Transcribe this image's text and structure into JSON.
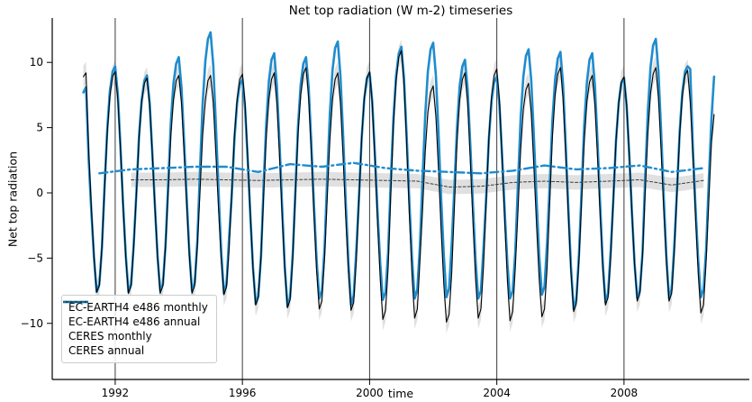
{
  "title": "Net top radiation (W m-2) timeseries",
  "chart_data": {
    "type": "line",
    "title": "Net top radiation (W m-2) timeseries",
    "xlabel": "time",
    "ylabel": "Net top radiation",
    "xlim": [
      1990.02,
      2011.94
    ],
    "ylim": [
      -14.3,
      13.4
    ],
    "xticks": [
      1992,
      1996,
      2000,
      2004,
      2008
    ],
    "yticks": [
      -10,
      -5,
      0,
      5,
      10
    ],
    "grid": "vertical lines at year ticks",
    "gridline_color": "#3a3a3a",
    "legend_position": "lower left",
    "series": [
      {
        "name": "EC-EARTH4 e486 monthly",
        "color": "#1f8ccd",
        "line": "solid",
        "width": 2.6,
        "x_start": 1991.0,
        "x_step": 0.0833333,
        "y": [
          7.7,
          8.1,
          2.5,
          -1.4,
          -5.0,
          -7.6,
          -7.0,
          -4.2,
          0.5,
          4.9,
          7.8,
          9.3,
          9.7,
          7.5,
          3.5,
          -0.9,
          -4.8,
          -7.6,
          -7.0,
          -3.9,
          0.1,
          4.4,
          7.1,
          8.6,
          9.0,
          6.9,
          3.1,
          -1.1,
          -4.9,
          -7.5,
          -7.0,
          -4.0,
          0.8,
          5.4,
          8.4,
          9.9,
          10.4,
          8.1,
          4.0,
          -0.5,
          -4.6,
          -7.5,
          -6.9,
          -3.7,
          1.8,
          6.8,
          10.1,
          11.8,
          12.3,
          9.8,
          5.2,
          0.1,
          -4.4,
          -7.7,
          -7.0,
          -3.4,
          -0.1,
          4.1,
          6.9,
          8.3,
          8.7,
          6.5,
          2.6,
          -1.8,
          -5.7,
          -8.5,
          -7.9,
          -4.9,
          0.5,
          5.3,
          8.6,
          10.2,
          10.7,
          8.2,
          3.8,
          -1.1,
          -5.6,
          -8.7,
          -8.0,
          -4.6,
          0.2,
          5.1,
          8.3,
          9.9,
          10.4,
          8.1,
          3.8,
          -0.9,
          -5.1,
          -8.1,
          -7.5,
          -4.2,
          1.1,
          6.1,
          9.4,
          11.1,
          11.6,
          9.0,
          4.4,
          -0.7,
          -5.3,
          -8.6,
          -7.9,
          -4.3,
          -0.3,
          4.2,
          7.2,
          8.8,
          9.2,
          7.0,
          3.0,
          -1.4,
          -5.4,
          -8.2,
          -7.6,
          -4.5,
          0.9,
          5.8,
          9.0,
          10.7,
          11.2,
          8.8,
          4.3,
          -0.6,
          -5.0,
          -8.1,
          -7.4,
          -4.0,
          1.1,
          6.0,
          9.3,
          11.0,
          11.5,
          9.0,
          4.6,
          -0.4,
          -4.8,
          -8.0,
          -7.3,
          -3.9,
          0.5,
          5.1,
          8.2,
          9.7,
          10.2,
          7.9,
          3.7,
          -1.0,
          -5.2,
          -8.1,
          -7.5,
          -4.2,
          -0.2,
          4.1,
          7.0,
          8.5,
          8.9,
          6.7,
          2.9,
          -1.5,
          -5.4,
          -8.1,
          -7.5,
          -4.5,
          0.8,
          5.7,
          8.9,
          10.5,
          11.0,
          8.6,
          4.3,
          -0.5,
          -4.8,
          -7.8,
          -7.2,
          -3.8,
          0.9,
          5.6,
          8.7,
          10.3,
          10.8,
          8.3,
          3.8,
          -1.2,
          -5.7,
          -8.9,
          -8.2,
          -4.7,
          0.2,
          5.2,
          8.5,
          10.2,
          10.7,
          8.3,
          3.9,
          -0.9,
          -5.3,
          -8.4,
          -7.7,
          -4.3,
          -0.4,
          4.0,
          6.9,
          8.4,
          8.8,
          6.7,
          2.8,
          -1.5,
          -5.4,
          -8.1,
          -7.5,
          -4.5,
          1.2,
          6.3,
          9.6,
          11.3,
          11.8,
          9.3,
          4.7,
          -0.3,
          -4.9,
          -8.1,
          -7.4,
          -3.9,
          0.2,
          4.7,
          7.7,
          9.3,
          9.7,
          9.5,
          3.4,
          -1.1,
          -5.2,
          -8.0,
          -7.4,
          -4.3,
          0.9,
          5.7,
          8.9
        ]
      },
      {
        "name": "EC-EARTH4 e486 annual",
        "color": "#1f8ccd",
        "line": "dashed",
        "dash": "9 4 2 4",
        "width": 2.4,
        "x_start": 1991.5,
        "x_step": 1,
        "y": [
          1.5,
          1.8,
          1.9,
          2.0,
          2.0,
          1.6,
          2.2,
          2.0,
          2.3,
          1.9,
          1.7,
          1.6,
          1.5,
          1.7,
          2.1,
          1.8,
          1.9,
          2.1,
          1.6,
          1.9
        ]
      },
      {
        "name": "CERES monthly",
        "color": "#000000",
        "line": "solid",
        "width": 1.1,
        "band": 0.85,
        "band_color": "#d8d8d8",
        "x_start": 1991.0,
        "x_step": 0.0833333,
        "y": [
          8.9,
          9.2,
          3.2,
          -1.1,
          -4.9,
          -7.6,
          -7.1,
          -4.1,
          0.3,
          4.6,
          7.4,
          8.9,
          9.3,
          7.1,
          3.3,
          -1.1,
          -5.0,
          -7.7,
          -7.1,
          -4.1,
          0.0,
          4.2,
          7.0,
          8.4,
          8.8,
          6.7,
          3.0,
          -1.2,
          -5.0,
          -7.7,
          -7.1,
          -4.1,
          0.1,
          4.4,
          7.1,
          8.6,
          9.0,
          6.9,
          3.1,
          -1.1,
          -4.9,
          -7.7,
          -7.1,
          -4.1,
          0.1,
          4.4,
          7.1,
          8.6,
          9.0,
          6.9,
          3.0,
          -1.3,
          -5.1,
          -7.8,
          -7.2,
          -4.3,
          0.1,
          4.4,
          7.2,
          8.7,
          9.1,
          6.9,
          2.8,
          -1.7,
          -5.8,
          -8.6,
          -8.0,
          -4.9,
          -0.3,
          4.2,
          7.2,
          8.7,
          9.2,
          6.9,
          2.8,
          -1.8,
          -5.9,
          -8.8,
          -8.2,
          -5.0,
          -0.2,
          4.5,
          7.5,
          9.1,
          9.6,
          7.3,
          3.0,
          -1.7,
          -5.9,
          -8.9,
          -8.3,
          -5.0,
          -0.5,
          4.1,
          7.2,
          8.7,
          9.2,
          6.9,
          2.7,
          -1.9,
          -6.1,
          -9.0,
          -8.4,
          -5.1,
          -0.5,
          4.2,
          7.3,
          8.8,
          9.3,
          6.9,
          2.5,
          -2.3,
          -6.6,
          -9.7,
          -9.0,
          -5.7,
          -0.1,
          5.2,
          8.6,
          10.4,
          10.9,
          8.3,
          3.6,
          -1.6,
          -6.3,
          -9.6,
          -8.9,
          -5.2,
          -1.3,
          3.2,
          6.2,
          7.7,
          8.2,
          5.9,
          1.8,
          -2.8,
          -7.0,
          -9.9,
          -9.3,
          -6.1,
          -1.0,
          3.9,
          7.1,
          8.7,
          9.2,
          6.8,
          2.5,
          -2.3,
          -6.6,
          -9.6,
          -8.9,
          -5.6,
          -0.7,
          4.2,
          7.4,
          9.0,
          9.5,
          7.1,
          2.6,
          -2.3,
          -6.7,
          -9.8,
          -9.1,
          -5.7,
          -1.3,
          3.3,
          6.4,
          7.9,
          8.4,
          6.1,
          2.0,
          -2.5,
          -6.6,
          -9.5,
          -8.9,
          -5.7,
          -0.6,
          4.3,
          7.5,
          9.1,
          9.6,
          7.2,
          3.0,
          -1.8,
          -6.1,
          -9.1,
          -8.5,
          -5.1,
          -0.7,
          3.9,
          7.0,
          8.5,
          9.0,
          6.8,
          2.7,
          -1.7,
          -5.8,
          -8.6,
          -8.0,
          -4.9,
          -0.4,
          4.0,
          6.9,
          8.5,
          8.9,
          6.7,
          2.8,
          -1.6,
          -5.5,
          -8.3,
          -7.7,
          -4.7,
          0.0,
          4.6,
          7.6,
          9.1,
          9.6,
          7.3,
          3.2,
          -1.3,
          -5.4,
          -8.3,
          -7.7,
          -4.5,
          0.0,
          4.5,
          7.4,
          9.0,
          9.4,
          7.0,
          2.8,
          -1.9,
          -6.2,
          -9.2,
          -8.6,
          -5.2,
          -0.7,
          3.9,
          6.0
        ]
      },
      {
        "name": "CERES annual",
        "color": "#3b3b3b",
        "line": "dashed",
        "dash": "3 2.2",
        "width": 1,
        "band": 0.55,
        "band_color": "#d8d8d8",
        "x_start": 1992.5,
        "x_step": 1,
        "y": [
          1.0,
          1.0,
          1.05,
          1.0,
          0.95,
          1.0,
          1.05,
          1.0,
          0.95,
          0.9,
          0.45,
          0.5,
          0.8,
          0.9,
          0.8,
          0.9,
          1.0,
          0.6,
          0.95
        ]
      }
    ]
  }
}
